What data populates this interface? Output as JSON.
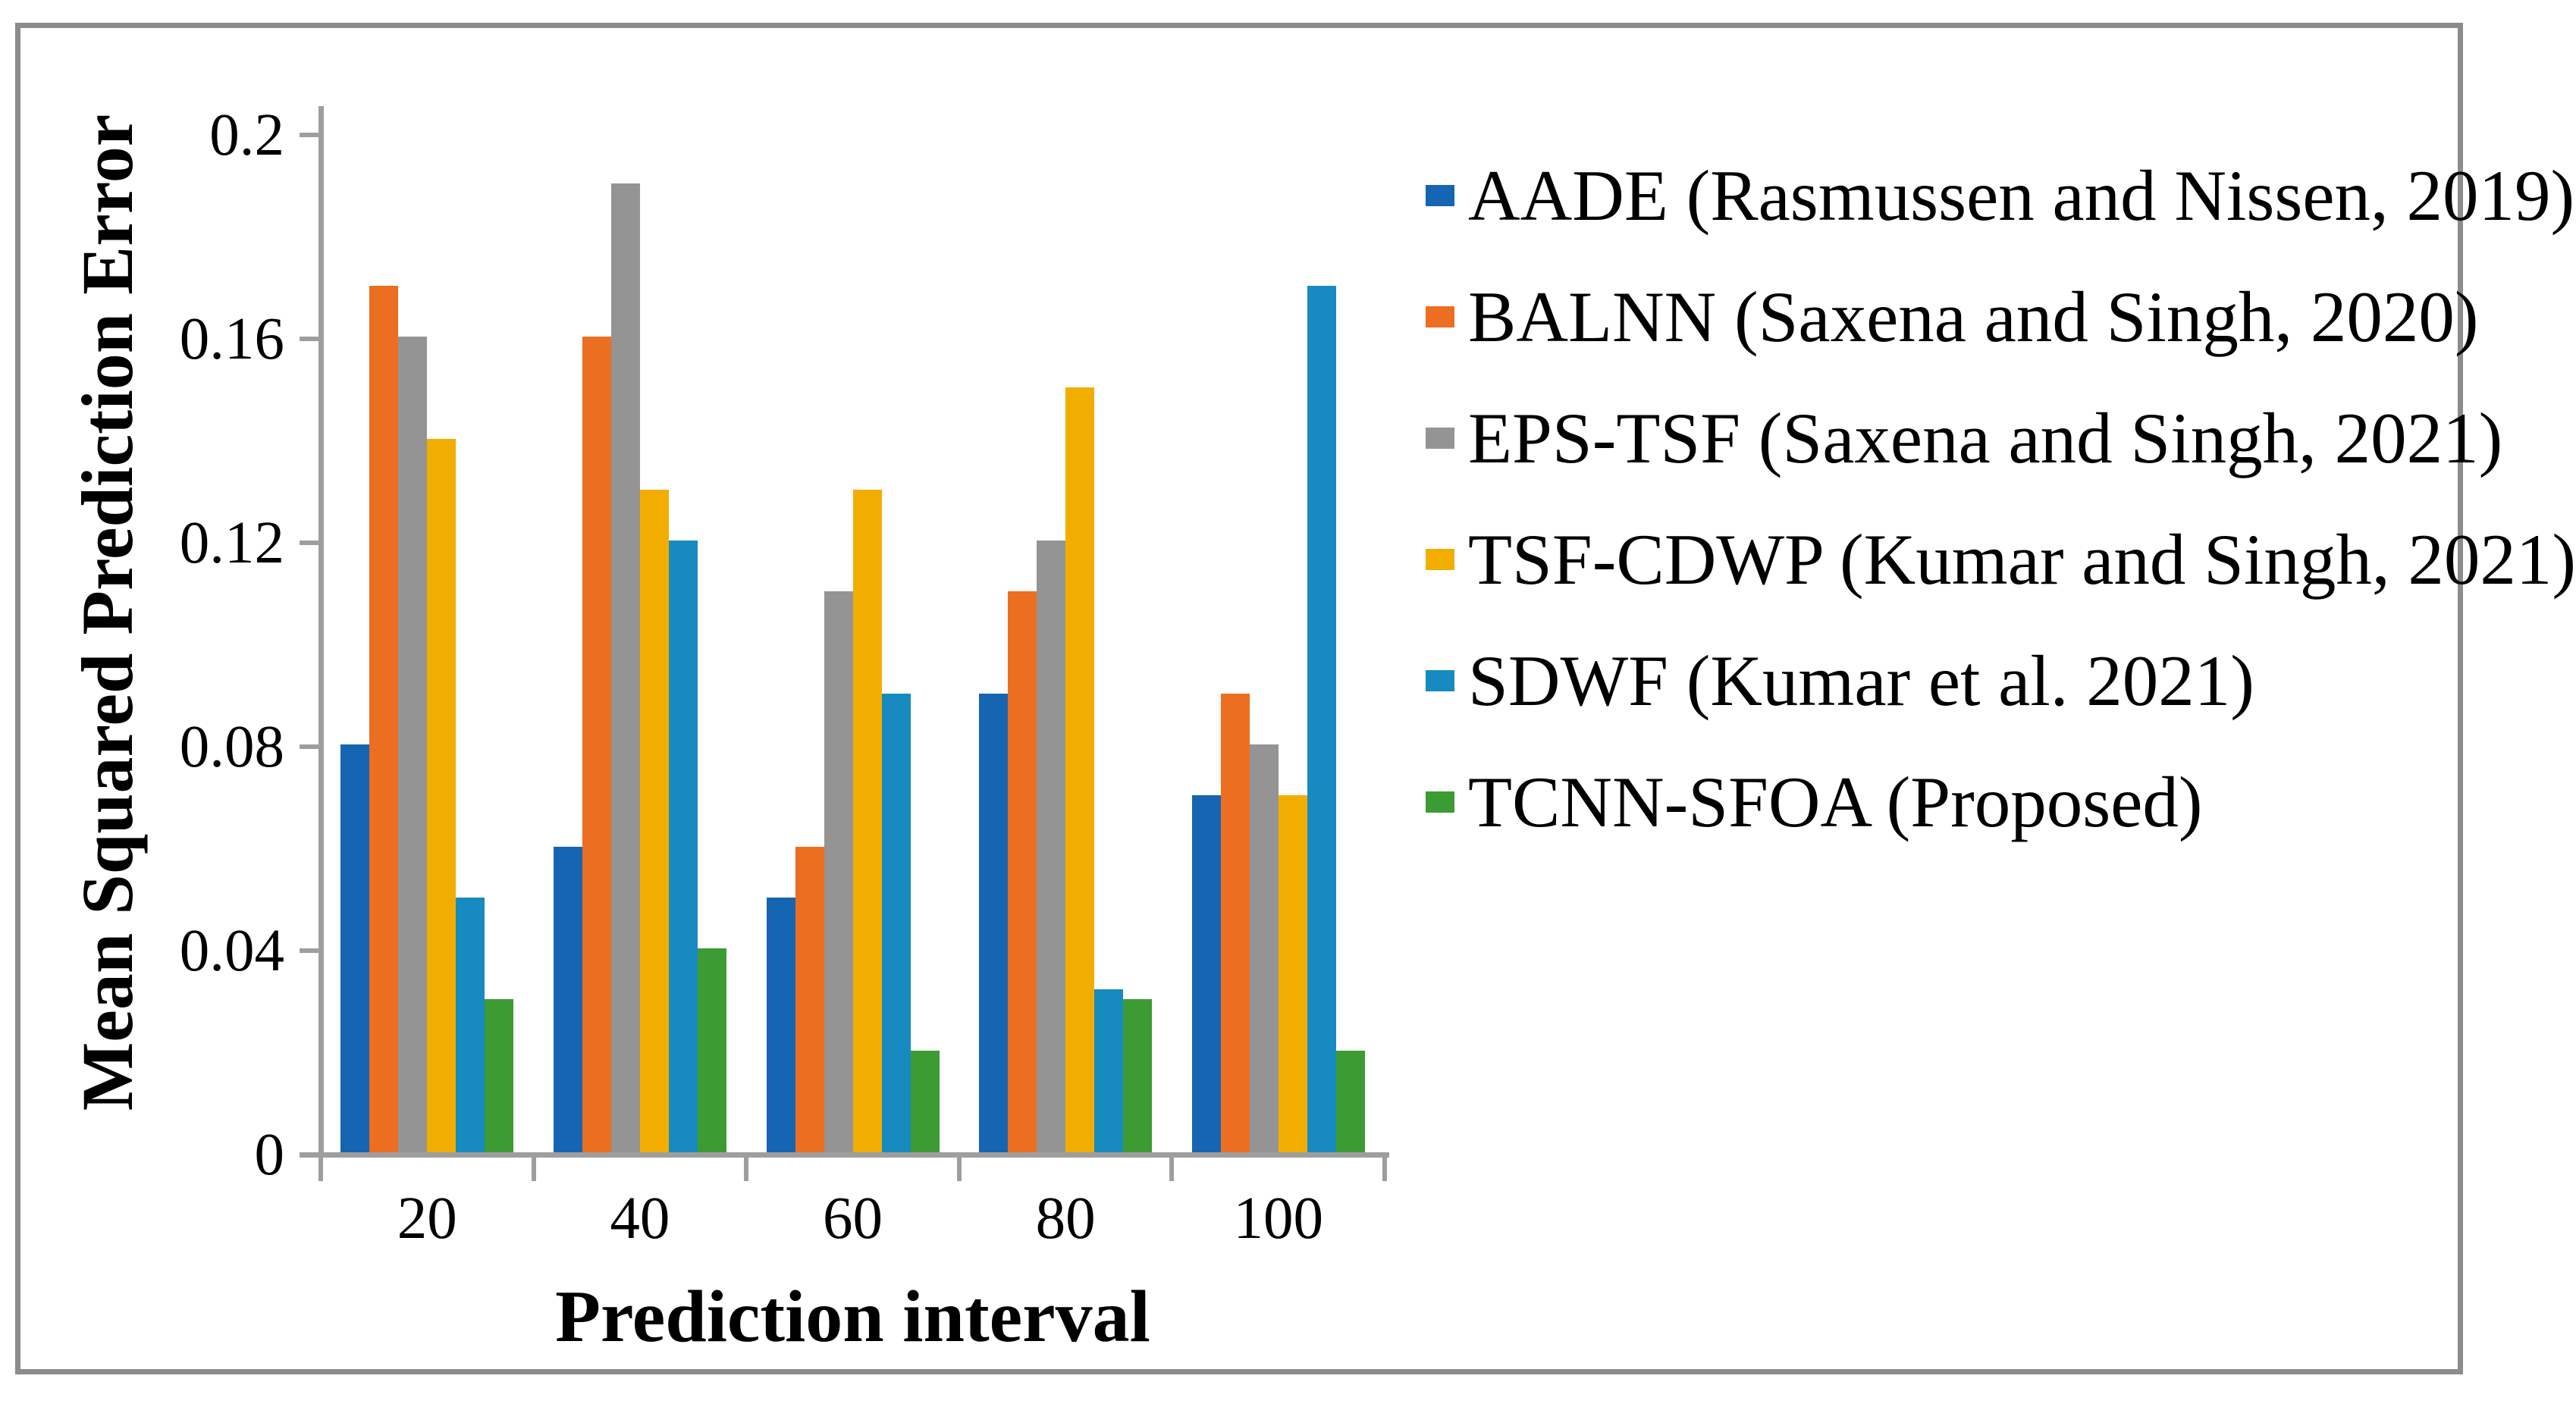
{
  "figure": {
    "background": "#FFFFFF",
    "border_color": "#8C8C8C",
    "axis_color": "#9E9E9E"
  },
  "chart_data": {
    "type": "bar",
    "title": "",
    "xlabel": "Prediction interval",
    "ylabel": "Mean Squared Prediction Error",
    "categories": [
      "20",
      "40",
      "60",
      "80",
      "100"
    ],
    "series": [
      {
        "name": "AADE (Rasmussen and Nissen, 2019)",
        "color": "#1565B2",
        "values": [
          0.08,
          0.06,
          0.05,
          0.09,
          0.07
        ]
      },
      {
        "name": "BALNN (Saxena and Singh, 2020)",
        "color": "#EC6E21",
        "values": [
          0.17,
          0.16,
          0.06,
          0.11,
          0.09
        ]
      },
      {
        "name": "EPS-TSF (Saxena and Singh, 2021)",
        "color": "#949494",
        "values": [
          0.16,
          0.19,
          0.11,
          0.12,
          0.08
        ]
      },
      {
        "name": "TSF-CDWP (Kumar and Singh, 2021)",
        "color": "#F2AE00",
        "values": [
          0.14,
          0.13,
          0.13,
          0.15,
          0.07
        ]
      },
      {
        "name": "SDWF (Kumar et al. 2021)",
        "color": "#178ABF",
        "values": [
          0.05,
          0.12,
          0.09,
          0.032,
          0.17
        ]
      },
      {
        "name": "TCNN-SFOA (Proposed)",
        "color": "#3C9B33",
        "values": [
          0.03,
          0.04,
          0.02,
          0.03,
          0.02
        ]
      }
    ],
    "y_ticks": [
      {
        "label": "0.2",
        "value": 0.2
      },
      {
        "label": "0.16",
        "value": 0.16
      },
      {
        "label": "0.12",
        "value": 0.12
      },
      {
        "label": "0.08",
        "value": 0.08
      },
      {
        "label": "0.04",
        "value": 0.04
      },
      {
        "label": "0",
        "value": 0
      }
    ],
    "ylim": [
      0,
      0.2
    ],
    "grid": false,
    "legend_position": "right"
  }
}
